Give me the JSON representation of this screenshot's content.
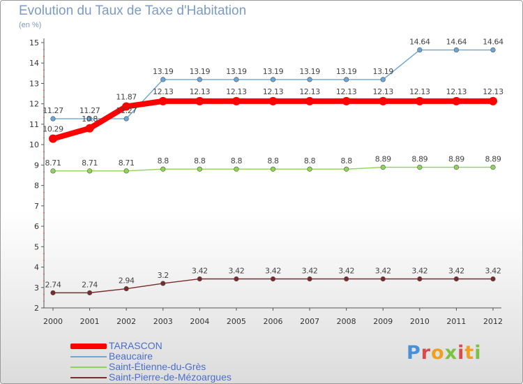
{
  "header": {
    "title": "Evolution du Taux de Taxe d'Habitation",
    "subtitle": "(en %)"
  },
  "logo": {
    "text": "Proxiti",
    "colors": [
      "#4a90d9",
      "#f0a020",
      "#7cc242",
      "#d94a4a"
    ]
  },
  "chart_data": {
    "type": "line",
    "title": "Evolution du Taux de Taxe d'Habitation",
    "subtitle": "(en %)",
    "xlabel": "",
    "ylabel": "(en %)",
    "x": [
      2000,
      2001,
      2002,
      2003,
      2004,
      2005,
      2006,
      2007,
      2008,
      2009,
      2010,
      2011,
      2012
    ],
    "ylim": [
      2,
      15
    ],
    "yticks": [
      2,
      3,
      4,
      5,
      6,
      7,
      8,
      9,
      10,
      11,
      12,
      13,
      14,
      15
    ],
    "grid": false,
    "legend_position": "bottom-left",
    "series": [
      {
        "name": "TARASCON",
        "color": "#ff0000",
        "emphasis": "thick",
        "values": [
          10.29,
          10.8,
          11.87,
          12.13,
          12.13,
          12.13,
          12.13,
          12.13,
          12.13,
          12.13,
          12.13,
          12.13,
          12.13
        ],
        "labels": [
          "10.29",
          "10.8",
          "11.87",
          "12.13",
          "12.13",
          "12.13",
          "12.13",
          "12.13",
          "12.13",
          "12.13",
          "12.13",
          "12.13",
          "12.13"
        ]
      },
      {
        "name": "Beaucaire",
        "color": "#6aa6d6",
        "emphasis": "thin",
        "values": [
          11.27,
          11.27,
          11.27,
          13.19,
          13.19,
          13.19,
          13.19,
          13.19,
          13.19,
          13.19,
          14.64,
          14.64,
          14.64
        ],
        "labels": [
          "11.27",
          "11.27",
          "11.27",
          "13.19",
          "13.19",
          "13.19",
          "13.19",
          "13.19",
          "13.19",
          "13.19",
          "14.64",
          "14.64",
          "14.64"
        ]
      },
      {
        "name": "Saint-Étienne-du-Grès",
        "color": "#8ed45a",
        "emphasis": "thin",
        "values": [
          8.71,
          8.71,
          8.71,
          8.8,
          8.8,
          8.8,
          8.8,
          8.8,
          8.8,
          8.89,
          8.89,
          8.89,
          8.89
        ],
        "labels": [
          "8.71",
          "8.71",
          "8.71",
          "8.8",
          "8.8",
          "8.8",
          "8.8",
          "8.8",
          "8.8",
          "8.89",
          "8.89",
          "8.89",
          "8.89"
        ]
      },
      {
        "name": "Saint-Pierre-de-Mézoargues",
        "color": "#7a2a2a",
        "emphasis": "thin",
        "values": [
          2.74,
          2.74,
          2.94,
          3.2,
          3.42,
          3.42,
          3.42,
          3.42,
          3.42,
          3.42,
          3.42,
          3.42,
          3.42
        ],
        "labels": [
          "2.74",
          "2.74",
          "2.94",
          "3.2",
          "3.42",
          "3.42",
          "3.42",
          "3.42",
          "3.42",
          "3.42",
          "3.42",
          "3.42",
          "3.42"
        ]
      }
    ]
  }
}
